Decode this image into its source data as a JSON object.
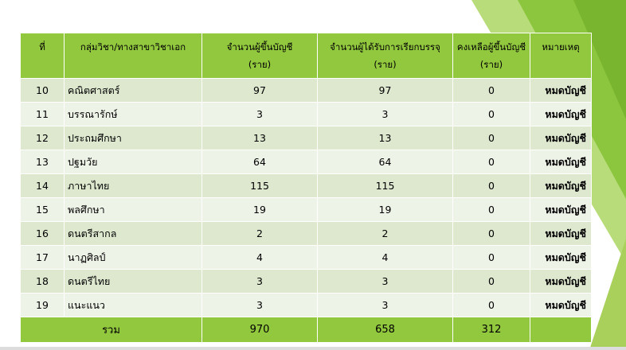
{
  "table": {
    "headers": {
      "no": "ที่",
      "subject": "กลุ่มวิชา/ทางสาขาวิชาเอก",
      "listed": "จำนวนผู้ขึ้นบัญชี",
      "listed_unit": "(ราย)",
      "called": "จำนวนผู้ได้รับการเรียกบรรจุ",
      "called_unit": "(ราย)",
      "remaining": "คงเหลือผู้ขึ้นบัญชี",
      "remaining_unit": "(ราย)",
      "note": "หมายเหตุ"
    },
    "rows": [
      {
        "no": "10",
        "subject": "คณิตศาสตร์",
        "listed": "97",
        "called": "97",
        "remaining": "0",
        "note": "หมดบัญชี"
      },
      {
        "no": "11",
        "subject": "บรรณารักษ์",
        "listed": "3",
        "called": "3",
        "remaining": "0",
        "note": "หมดบัญชี"
      },
      {
        "no": "12",
        "subject": "ประถมศึกษา",
        "listed": "13",
        "called": "13",
        "remaining": "0",
        "note": "หมดบัญชี"
      },
      {
        "no": "13",
        "subject": "ปฐมวัย",
        "listed": "64",
        "called": "64",
        "remaining": "0",
        "note": "หมดบัญชี"
      },
      {
        "no": "14",
        "subject": "ภาษาไทย",
        "listed": "115",
        "called": "115",
        "remaining": "0",
        "note": "หมดบัญชี"
      },
      {
        "no": "15",
        "subject": "พลศึกษา",
        "listed": "19",
        "called": "19",
        "remaining": "0",
        "note": "หมดบัญชี"
      },
      {
        "no": "16",
        "subject": "ดนตรีสากล",
        "listed": "2",
        "called": "2",
        "remaining": "0",
        "note": "หมดบัญชี"
      },
      {
        "no": "17",
        "subject": "นาฏศิลป์",
        "listed": "4",
        "called": "4",
        "remaining": "0",
        "note": "หมดบัญชี"
      },
      {
        "no": "18",
        "subject": "ดนตรีไทย",
        "listed": "3",
        "called": "3",
        "remaining": "0",
        "note": "หมดบัญชี"
      },
      {
        "no": "19",
        "subject": "แนะแนว",
        "listed": "3",
        "called": "3",
        "remaining": "0",
        "note": "หมดบัญชี"
      }
    ],
    "total": {
      "label": "รวม",
      "listed": "970",
      "called": "658",
      "remaining": "312"
    }
  },
  "colors": {
    "header_green": "#92c83e",
    "row_odd": "#dde8cf",
    "row_even": "#eef3e8"
  }
}
